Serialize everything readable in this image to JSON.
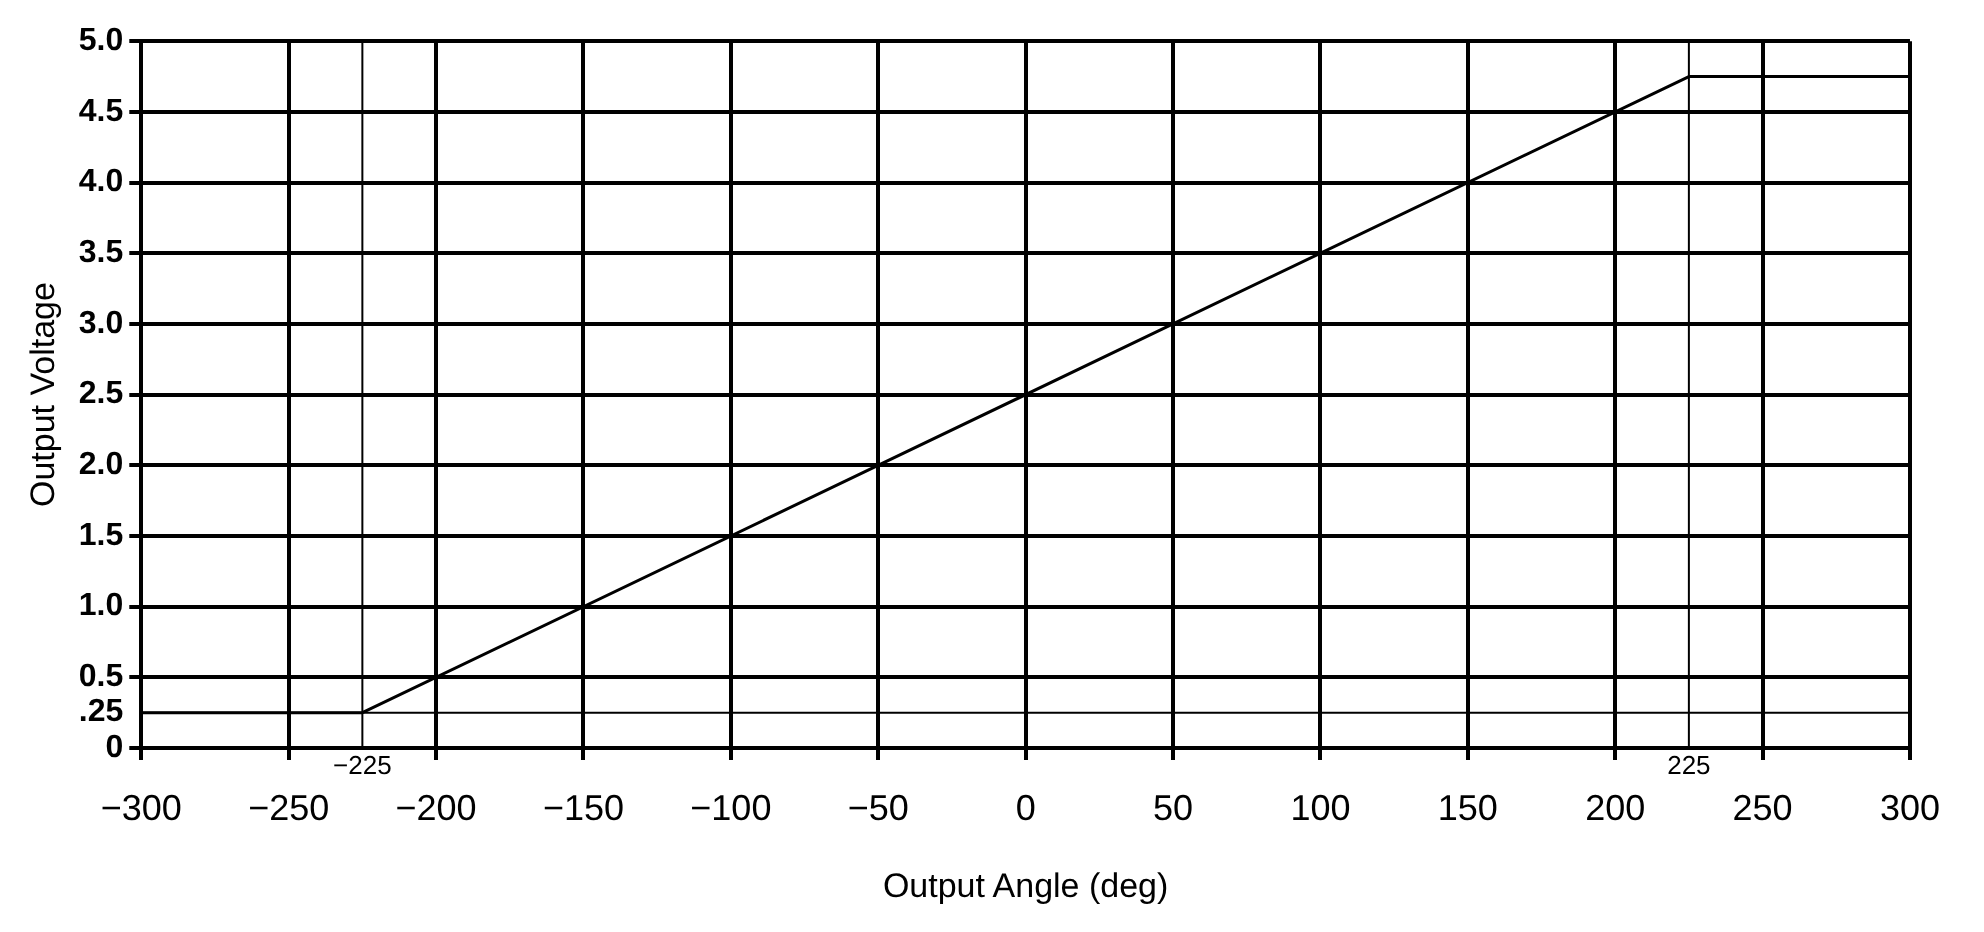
{
  "chart_data": {
    "type": "line",
    "xlabel": "Output Angle (deg)",
    "ylabel": "Output Voltage",
    "series": [
      {
        "color": "#000000",
        "x": [
          -300,
          -225,
          225,
          300
        ],
        "values": [
          0.25,
          0.25,
          4.75,
          4.75
        ]
      }
    ],
    "xlim": [
      -300,
      300
    ],
    "ylim": [
      0,
      5
    ],
    "xticks": [
      {
        "value": -300,
        "label": "−300"
      },
      {
        "value": -250,
        "label": "−250"
      },
      {
        "value": -200,
        "label": "−200"
      },
      {
        "value": -150,
        "label": "−150"
      },
      {
        "value": -100,
        "label": "−100"
      },
      {
        "value": -50,
        "label": "−50"
      },
      0,
      50,
      100,
      150,
      200,
      250,
      300
    ],
    "yticks": [
      0,
      {
        "value": 0.25,
        "label": ".25"
      },
      {
        "value": 0.5,
        "label": "0.5"
      },
      {
        "value": 1,
        "label": "1.0"
      },
      1.5,
      {
        "value": 2,
        "label": "2.0"
      },
      2.5,
      {
        "value": 3,
        "label": "3.0"
      },
      3.5,
      {
        "value": 4,
        "label": "4.0"
      },
      4.5,
      {
        "value": 5,
        "label": "5.0"
      }
    ],
    "ref_lines": [
      {
        "axis": "y",
        "value": 0.25
      },
      {
        "axis": "x",
        "value": -225,
        "label": "−225"
      },
      {
        "axis": "x",
        "value": 225,
        "label": "225"
      }
    ],
    "grid": true,
    "legend": false,
    "marker": "none",
    "line_style": "solid"
  }
}
